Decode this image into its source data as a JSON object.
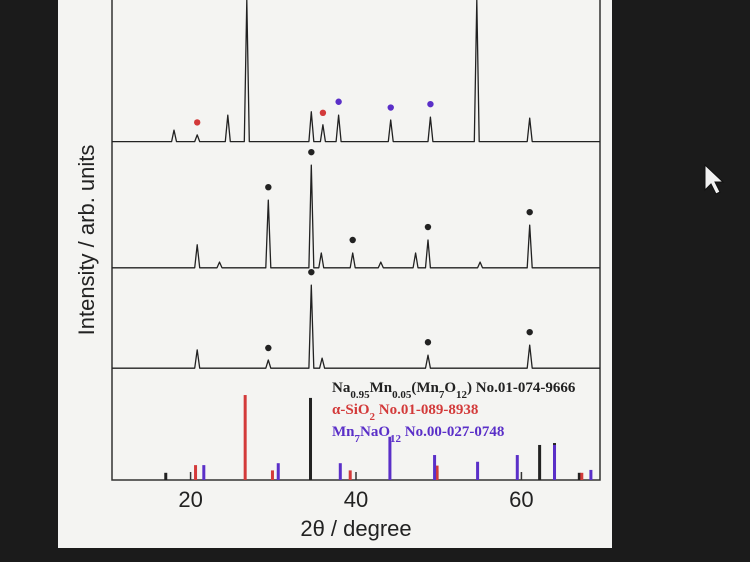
{
  "chart_data": {
    "type": "line",
    "xlabel": "2θ / degree",
    "ylabel": "Intensity / arb. units",
    "xlim": [
      10.5,
      69.5
    ],
    "ylim": [
      0,
      100
    ],
    "xticks": [
      20,
      40,
      60
    ],
    "series": [
      {
        "color": "#222222",
        "x": [
          10.5,
          17.7,
          18.0,
          18.3,
          20.5,
          20.8,
          21.1,
          24.2,
          24.5,
          24.8,
          26.5,
          26.8,
          27.1,
          34.3,
          34.6,
          34.9,
          35.7,
          36.0,
          36.3,
          37.6,
          37.9,
          38.2,
          43.9,
          44.2,
          44.5,
          48.7,
          49.0,
          49.3,
          54.3,
          54.6,
          54.9,
          60.7,
          61.0,
          61.3,
          69.5
        ],
        "values": [
          70.5,
          70.5,
          72.9,
          70.5,
          70.5,
          71.9,
          70.5,
          70.5,
          76.0,
          70.5,
          70.5,
          100,
          70.5,
          70.5,
          76.7,
          70.5,
          70.5,
          74.0,
          70.5,
          70.5,
          76.0,
          70.5,
          70.5,
          75.0,
          70.5,
          70.5,
          75.6,
          70.5,
          70.5,
          100,
          70.5,
          70.5,
          75.4,
          70.5,
          70.5
        ]
      },
      {
        "color": "#222222",
        "x": [
          10.5,
          20.5,
          20.8,
          21.1,
          23.2,
          23.5,
          23.8,
          29.1,
          29.4,
          29.7,
          34.3,
          34.6,
          34.9,
          35.5,
          35.8,
          36.1,
          39.3,
          39.6,
          39.9,
          42.7,
          43.0,
          43.3,
          46.9,
          47.2,
          47.5,
          48.4,
          48.7,
          49.0,
          54.7,
          55.0,
          55.3,
          60.7,
          61.0,
          61.3,
          69.5
        ],
        "values": [
          44.2,
          44.2,
          49.0,
          44.2,
          44.2,
          45.4,
          44.2,
          44.2,
          58.3,
          44.2,
          44.2,
          65.6,
          44.2,
          44.2,
          47.3,
          44.2,
          44.2,
          47.3,
          44.2,
          44.2,
          45.4,
          44.2,
          44.2,
          47.3,
          44.2,
          44.2,
          50.0,
          44.2,
          44.2,
          45.4,
          44.2,
          44.2,
          53.1,
          44.2,
          44.2
        ]
      },
      {
        "color": "#222222",
        "x": [
          10.5,
          20.5,
          20.8,
          21.1,
          29.1,
          29.4,
          29.7,
          34.3,
          34.6,
          34.9,
          35.6,
          35.9,
          36.2,
          48.4,
          48.7,
          49.0,
          60.7,
          61.0,
          61.3,
          69.5
        ],
        "values": [
          23.3,
          23.3,
          27.1,
          23.3,
          23.3,
          25.0,
          23.3,
          23.3,
          40.6,
          23.3,
          23.3,
          25.4,
          23.3,
          23.3,
          26.0,
          23.3,
          23.3,
          28.1,
          23.3,
          23.3
        ]
      }
    ],
    "markers": [
      {
        "x": 20.8,
        "y": 74.5,
        "color": "#d33a3a"
      },
      {
        "x": 36.0,
        "y": 76.5,
        "color": "#d33a3a"
      },
      {
        "x": 37.9,
        "y": 78.8,
        "color": "#5a2fc8"
      },
      {
        "x": 44.2,
        "y": 77.6,
        "color": "#5a2fc8"
      },
      {
        "x": 49.0,
        "y": 78.3,
        "color": "#5a2fc8"
      },
      {
        "x": 29.4,
        "y": 61.0,
        "color": "#222222"
      },
      {
        "x": 34.6,
        "y": 68.3,
        "color": "#222222"
      },
      {
        "x": 39.6,
        "y": 50.0,
        "color": "#222222"
      },
      {
        "x": 48.7,
        "y": 52.7,
        "color": "#222222"
      },
      {
        "x": 61.0,
        "y": 55.8,
        "color": "#222222"
      },
      {
        "x": 29.4,
        "y": 27.5,
        "color": "#222222"
      },
      {
        "x": 34.6,
        "y": 43.3,
        "color": "#222222"
      },
      {
        "x": 48.7,
        "y": 28.7,
        "color": "#222222"
      },
      {
        "x": 61.0,
        "y": 30.8,
        "color": "#222222"
      }
    ],
    "references": {
      "type": "stem",
      "series": [
        {
          "name": "Na0.95Mn0.05(Mn7O12) No.01-074-9666",
          "color": "#222222",
          "x": [
            17.0,
            34.5,
            49.8,
            62.2,
            64.0,
            67.0
          ],
          "values": [
            1.5,
            17.1,
            2.0,
            7.3,
            7.7,
            1.5
          ]
        },
        {
          "name": "α-SiO2 No.01-089-8938",
          "color": "#d33a3a",
          "x": [
            20.6,
            26.6,
            29.9,
            39.3,
            49.8,
            67.3
          ],
          "values": [
            3.1,
            17.7,
            2.0,
            2.0,
            3.0,
            1.5
          ]
        },
        {
          "name": "Mn7NaO12 No.00-027-0748",
          "color": "#5a2fc8",
          "x": [
            21.6,
            30.6,
            38.1,
            44.1,
            49.5,
            54.7,
            59.5,
            64.0,
            68.4
          ],
          "values": [
            3.1,
            3.5,
            3.5,
            9.0,
            5.2,
            3.8,
            5.2,
            7.3,
            2.1
          ]
        }
      ]
    }
  }
}
